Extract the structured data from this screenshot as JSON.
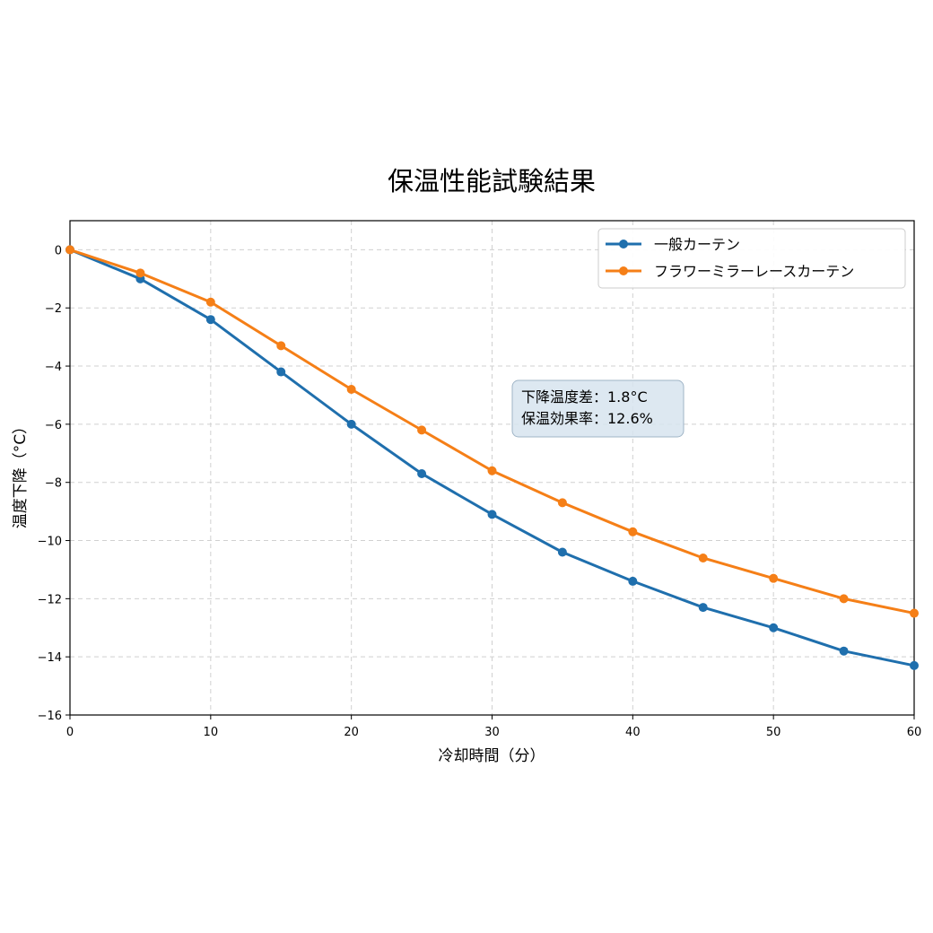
{
  "chart_data": {
    "type": "line",
    "title": "保温性能試験結果",
    "xlabel": "冷却時間（分）",
    "ylabel": "温度下降（°C）",
    "xlim": [
      0,
      60
    ],
    "ylim": [
      -16,
      1
    ],
    "xticks": [
      "0",
      "10",
      "20",
      "30",
      "40",
      "50",
      "60"
    ],
    "yticks": [
      "0",
      "−2",
      "−4",
      "−6",
      "−8",
      "−10",
      "−12",
      "−14",
      "−16"
    ],
    "grid": true,
    "legend_position": "top-right",
    "x": [
      0,
      5,
      10,
      15,
      20,
      25,
      30,
      35,
      40,
      45,
      50,
      55,
      60
    ],
    "series": [
      {
        "name": "一般カーテン",
        "color": "#1f6fad",
        "values": [
          0,
          -1.0,
          -2.4,
          -4.2,
          -6.0,
          -7.7,
          -9.1,
          -10.4,
          -11.4,
          -12.3,
          -13.0,
          -13.8,
          -14.3
        ]
      },
      {
        "name": "フラワーミラーレースカーテン",
        "color": "#f57f17",
        "values": [
          0,
          -0.8,
          -1.8,
          -3.3,
          -4.8,
          -6.2,
          -7.6,
          -8.7,
          -9.7,
          -10.6,
          -11.3,
          -12.0,
          -12.5
        ]
      }
    ],
    "annotation": {
      "line1": "下降温度差：1.8°C",
      "line2": "保温効果率：12.6%"
    }
  }
}
